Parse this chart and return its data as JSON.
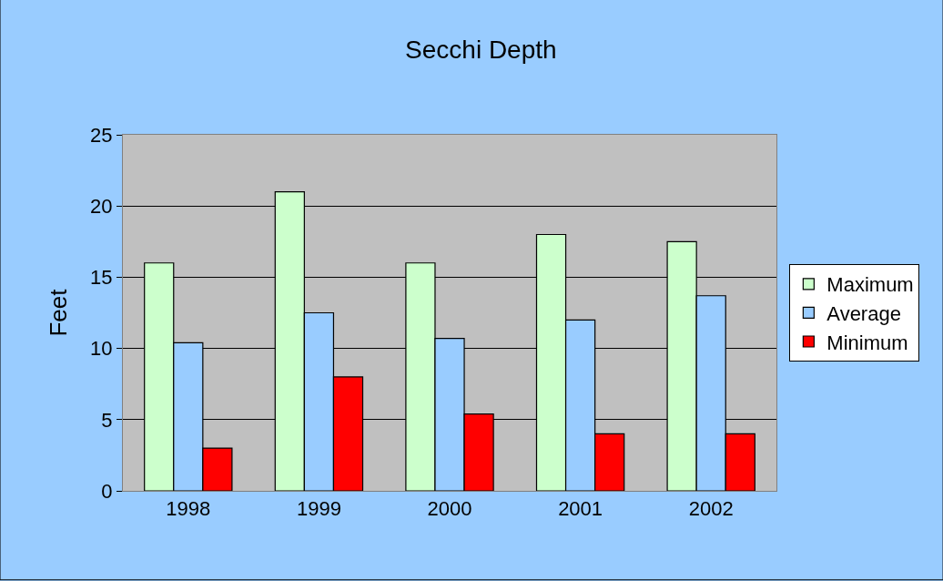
{
  "chart_data": {
    "type": "bar",
    "title": "Secchi Depth",
    "ylabel": "Feet",
    "categories": [
      "1998",
      "1999",
      "2000",
      "2001",
      "2002"
    ],
    "series": [
      {
        "name": "Maximum",
        "color": "#ccffcc",
        "values": [
          16,
          21,
          16,
          18,
          17.5
        ]
      },
      {
        "name": "Average",
        "color": "#99ccff",
        "values": [
          10.4,
          12.5,
          10.7,
          12,
          13.7
        ]
      },
      {
        "name": "Minimum",
        "color": "#ff0000",
        "values": [
          3,
          8,
          5.4,
          4,
          4
        ]
      }
    ],
    "ylim": [
      0,
      25
    ],
    "yticks": [
      0,
      5,
      10,
      15,
      20,
      25
    ],
    "grid": "y",
    "legend": "right"
  }
}
